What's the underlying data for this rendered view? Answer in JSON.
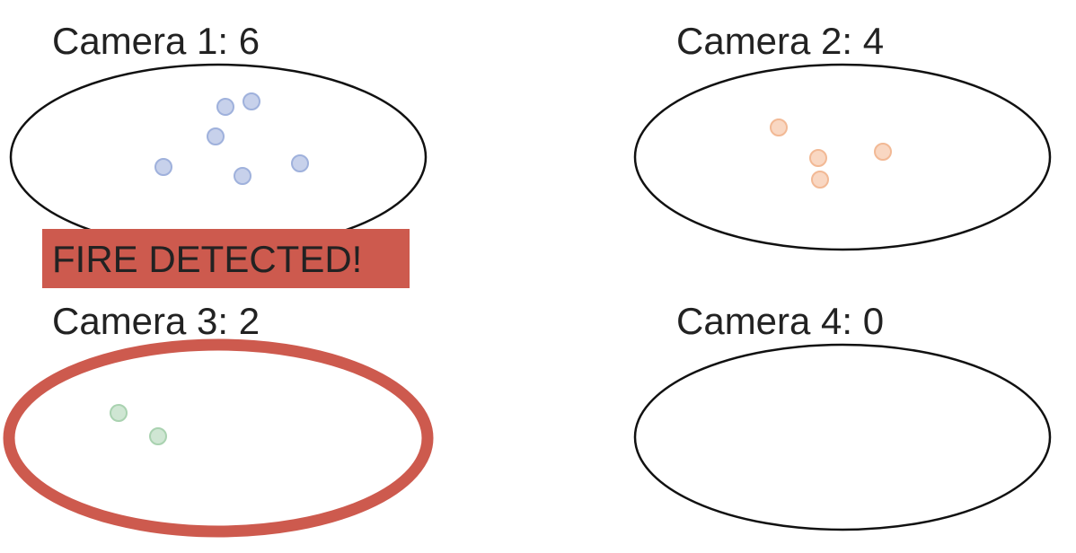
{
  "cameras": [
    {
      "label": "Camera 1: 6"
    },
    {
      "label": "Camera 2: 4"
    },
    {
      "label": "Camera 3: 2"
    },
    {
      "label": "Camera 4: 0"
    }
  ],
  "alert": {
    "text": "FIRE DETECTED!"
  }
}
